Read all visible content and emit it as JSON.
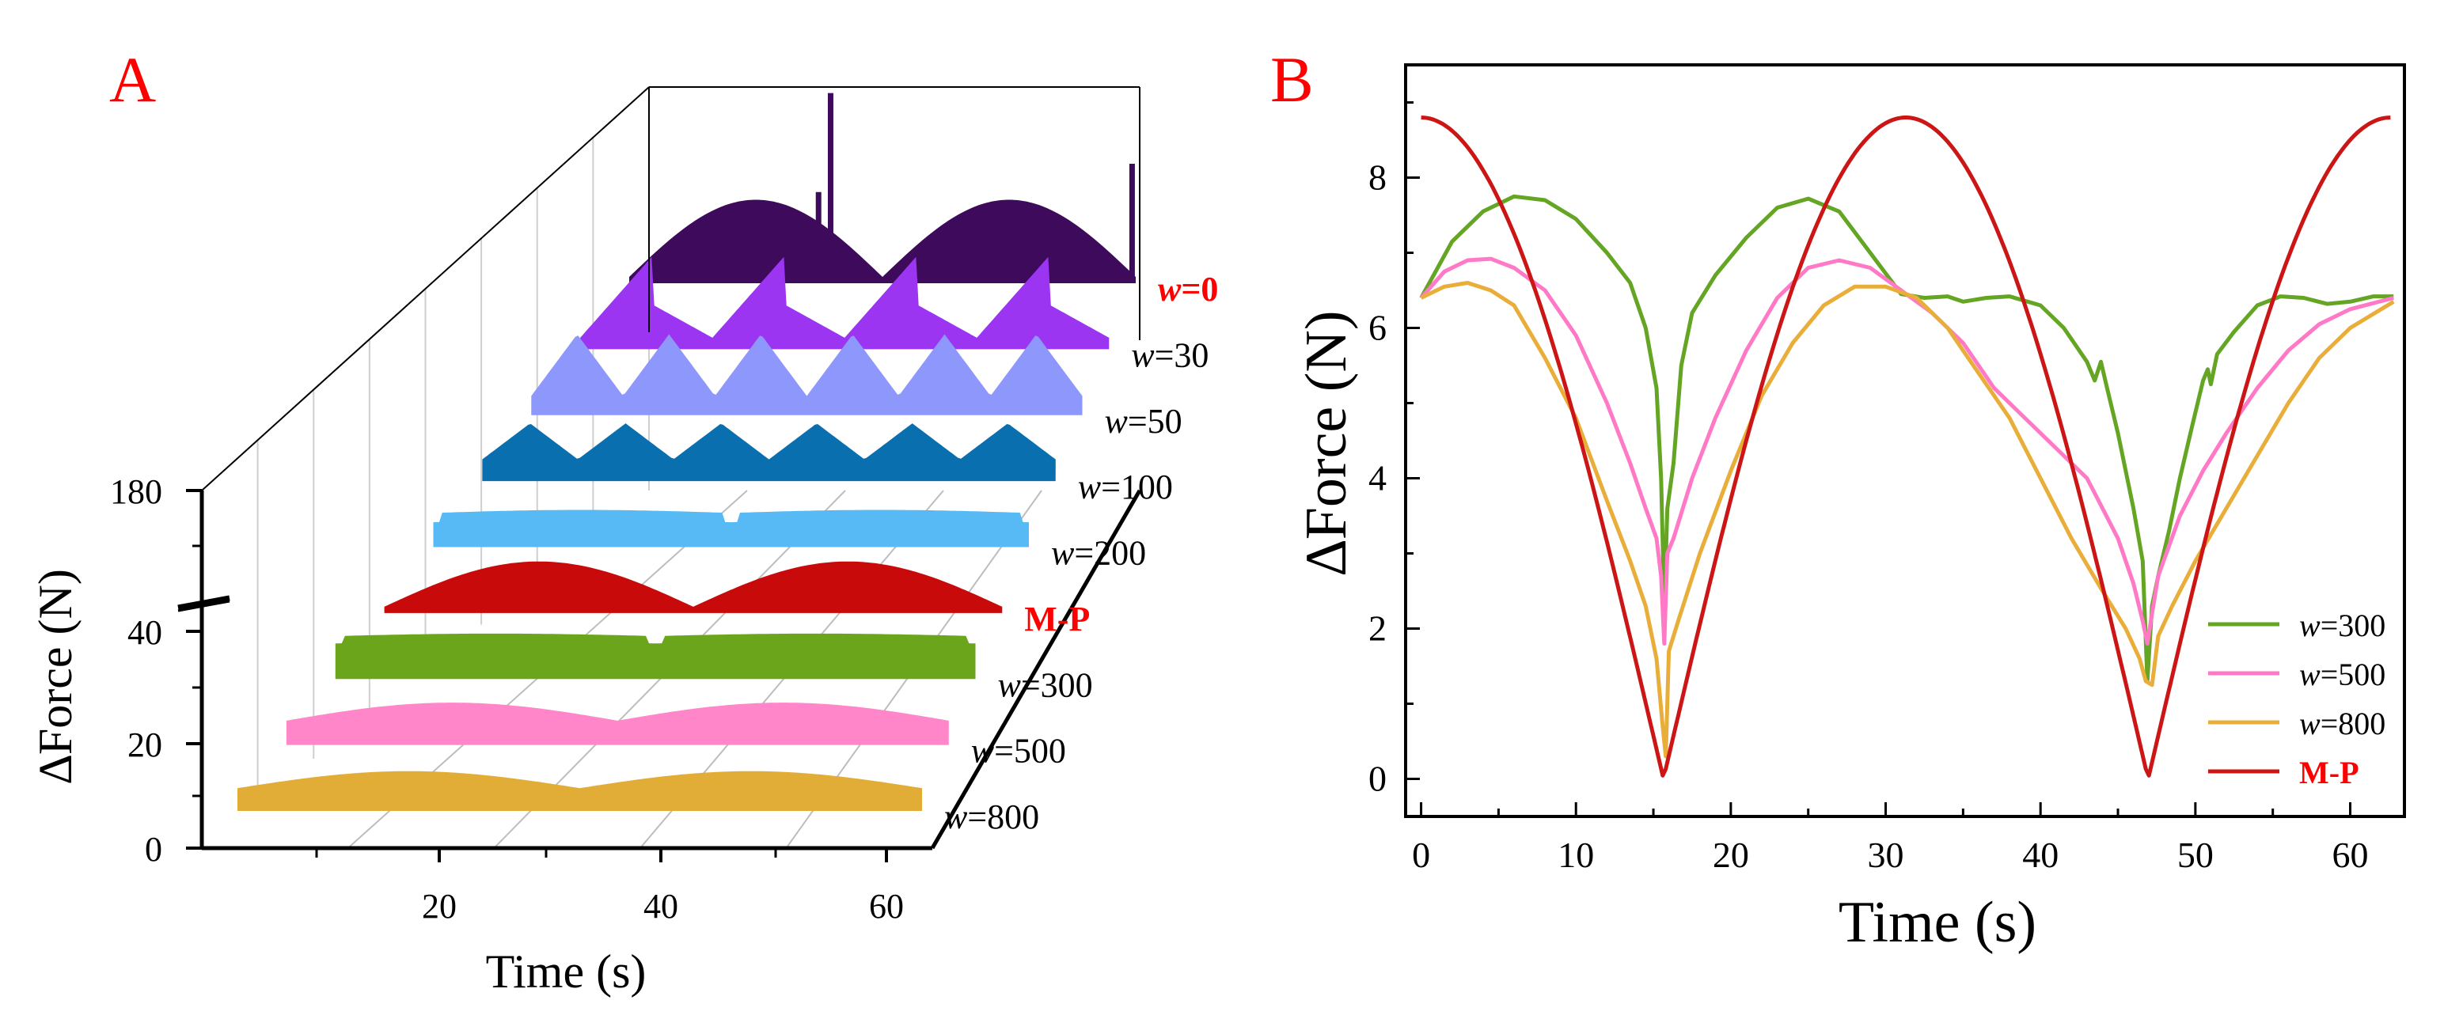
{
  "panels": {
    "a": {
      "letter": "A",
      "letter_color": "#ff0000"
    },
    "b": {
      "letter": "B",
      "letter_color": "#ff0000"
    }
  },
  "chart_data": [
    {
      "id": "panel-a",
      "type": "area",
      "subtype": "3d-waterfall",
      "xlabel": "Time (s)",
      "ylabel": "∆Force (N)",
      "xlim": [
        0,
        63
      ],
      "xticks": [
        20,
        40,
        60
      ],
      "ylim": [
        0,
        180
      ],
      "yticks": [
        {
          "label": "0",
          "value": 0
        },
        {
          "label": "20",
          "value": 20
        },
        {
          "label": "40",
          "value": 40
        },
        {
          "label": "180",
          "value": 180
        }
      ],
      "axis_break": "between 40 and 180",
      "series": [
        {
          "name": "w=800",
          "var": "w",
          "eq": "=800",
          "color": "#e2ad37",
          "label_color": "#000000",
          "bold": false,
          "kind": "arch",
          "base": 3.2,
          "amp": 3.3
        },
        {
          "name": "w=500",
          "var": "w",
          "eq": "=500",
          "color": "#ff86c9",
          "label_color": "#000000",
          "bold": false,
          "kind": "arch",
          "base": 3.5,
          "amp": 3.5
        },
        {
          "name": "w=300",
          "var": "w",
          "eq": "=300",
          "color": "#6aa51c",
          "label_color": "#000000",
          "bold": false,
          "kind": "flat",
          "base": 6.4,
          "amp": 1.2
        },
        {
          "name": "M-P",
          "var": "",
          "eq": "M-P",
          "color": "#c80a0a",
          "label_color": "#ff0000",
          "bold": true,
          "kind": "arch",
          "base": 0,
          "amp": 8.8
        },
        {
          "name": "w=200",
          "var": "w",
          "eq": "=200",
          "color": "#58baf5",
          "label_color": "#000000",
          "bold": false,
          "kind": "flat",
          "base": 4.5,
          "amp": 1.5
        },
        {
          "name": "w=100",
          "var": "w",
          "eq": "=100",
          "color": "#0a6fae",
          "label_color": "#000000",
          "bold": false,
          "kind": "tri",
          "base": 3.0,
          "amp": 7.0
        },
        {
          "name": "w=50",
          "var": "w",
          "eq": "=50",
          "color": "#8e98fc",
          "label_color": "#000000",
          "bold": false,
          "kind": "tri",
          "base": 2.5,
          "amp": 12.0
        },
        {
          "name": "w=30",
          "var": "w",
          "eq": "=30",
          "color": "#9b35f2",
          "label_color": "#000000",
          "bold": false,
          "kind": "saw",
          "base": 1.0,
          "amp": 16.0
        },
        {
          "name": "w=0",
          "var": "w",
          "eq": "=0",
          "color": "#3e0b5c",
          "label_color": "#ff0000",
          "bold": true,
          "kind": "arch",
          "base": 0,
          "amp": 15.0,
          "spikes": [
            {
              "x": 23.5,
              "h": 30
            },
            {
              "x": 25.0,
              "h": 65
            },
            {
              "x": 62.5,
              "h": 40
            }
          ]
        }
      ]
    },
    {
      "id": "panel-b",
      "type": "line",
      "xlabel": "Time (s)",
      "ylabel": "∆Force (N)",
      "xlim": [
        -1,
        63.5
      ],
      "ylim": [
        -0.5,
        9.5
      ],
      "xticks": [
        0,
        10,
        20,
        30,
        40,
        50,
        60
      ],
      "yticks": [
        0,
        2,
        4,
        6,
        8
      ],
      "legend": "bottom-right",
      "series": [
        {
          "name": "w=300",
          "var": "w",
          "eq": "=300",
          "color": "#64a524",
          "label_color": "#000000",
          "bold": false,
          "points": [
            [
              0,
              6.4
            ],
            [
              2,
              7.15
            ],
            [
              4,
              7.55
            ],
            [
              6,
              7.75
            ],
            [
              8,
              7.7
            ],
            [
              10,
              7.45
            ],
            [
              12,
              7.0
            ],
            [
              13.5,
              6.6
            ],
            [
              14.5,
              6.0
            ],
            [
              15.2,
              5.2
            ],
            [
              15.5,
              4.0
            ],
            [
              15.7,
              2.3
            ],
            [
              15.9,
              3.6
            ],
            [
              16.3,
              4.2
            ],
            [
              16.8,
              5.5
            ],
            [
              17.5,
              6.2
            ],
            [
              19,
              6.7
            ],
            [
              21,
              7.2
            ],
            [
              23,
              7.6
            ],
            [
              25,
              7.72
            ],
            [
              27,
              7.55
            ],
            [
              29,
              7.0
            ],
            [
              31,
              6.45
            ],
            [
              32.5,
              6.4
            ],
            [
              34,
              6.42
            ],
            [
              35,
              6.35
            ],
            [
              36.5,
              6.4
            ],
            [
              38,
              6.42
            ],
            [
              40,
              6.3
            ],
            [
              41.5,
              6.0
            ],
            [
              43,
              5.55
            ],
            [
              43.5,
              5.3
            ],
            [
              43.9,
              5.55
            ],
            [
              44.3,
              5.2
            ],
            [
              45,
              4.6
            ],
            [
              46,
              3.6
            ],
            [
              46.6,
              2.9
            ],
            [
              46.9,
              1.3
            ],
            [
              47.2,
              2.3
            ],
            [
              47.6,
              2.7
            ],
            [
              48.3,
              3.3
            ],
            [
              49,
              4.0
            ],
            [
              49.8,
              4.7
            ],
            [
              50.5,
              5.3
            ],
            [
              50.8,
              5.45
            ],
            [
              51,
              5.25
            ],
            [
              51.4,
              5.65
            ],
            [
              52.5,
              5.95
            ],
            [
              54,
              6.3
            ],
            [
              55.5,
              6.42
            ],
            [
              57,
              6.4
            ],
            [
              58.5,
              6.32
            ],
            [
              60,
              6.35
            ],
            [
              61.5,
              6.42
            ],
            [
              62.8,
              6.42
            ]
          ]
        },
        {
          "name": "w=500",
          "var": "w",
          "eq": "=500",
          "color": "#ff79c6",
          "label_color": "#000000",
          "bold": false,
          "points": [
            [
              0,
              6.4
            ],
            [
              1.5,
              6.75
            ],
            [
              3,
              6.9
            ],
            [
              4.5,
              6.92
            ],
            [
              6,
              6.8
            ],
            [
              8,
              6.5
            ],
            [
              10,
              5.9
            ],
            [
              12,
              5.0
            ],
            [
              13.5,
              4.2
            ],
            [
              14.5,
              3.6
            ],
            [
              15.2,
              3.2
            ],
            [
              15.5,
              2.7
            ],
            [
              15.7,
              1.8
            ],
            [
              15.9,
              3.0
            ],
            [
              16.3,
              3.2
            ],
            [
              17.5,
              4.0
            ],
            [
              19,
              4.8
            ],
            [
              21,
              5.7
            ],
            [
              23,
              6.4
            ],
            [
              25,
              6.8
            ],
            [
              27,
              6.9
            ],
            [
              29,
              6.8
            ],
            [
              31,
              6.5
            ],
            [
              33,
              6.2
            ],
            [
              35,
              5.8
            ],
            [
              37,
              5.2
            ],
            [
              39,
              4.8
            ],
            [
              41,
              4.4
            ],
            [
              43,
              4.0
            ],
            [
              44,
              3.6
            ],
            [
              45,
              3.2
            ],
            [
              46,
              2.6
            ],
            [
              46.6,
              2.1
            ],
            [
              46.9,
              1.8
            ],
            [
              47.2,
              2.2
            ],
            [
              47.6,
              2.7
            ],
            [
              48.3,
              3.1
            ],
            [
              49,
              3.5
            ],
            [
              50.5,
              4.1
            ],
            [
              52,
              4.6
            ],
            [
              54,
              5.2
            ],
            [
              56,
              5.7
            ],
            [
              58,
              6.05
            ],
            [
              60,
              6.25
            ],
            [
              62.8,
              6.4
            ]
          ]
        },
        {
          "name": "w=800",
          "var": "w",
          "eq": "=800",
          "color": "#e9ae3a",
          "label_color": "#000000",
          "bold": false,
          "points": [
            [
              0,
              6.4
            ],
            [
              1.5,
              6.55
            ],
            [
              3,
              6.6
            ],
            [
              4.5,
              6.5
            ],
            [
              6,
              6.3
            ],
            [
              8,
              5.6
            ],
            [
              10,
              4.8
            ],
            [
              12,
              3.7
            ],
            [
              13.5,
              2.9
            ],
            [
              14.5,
              2.3
            ],
            [
              15.2,
              1.6
            ],
            [
              15.6,
              0.7
            ],
            [
              15.8,
              0.3
            ],
            [
              16,
              1.7
            ],
            [
              16.6,
              2.1
            ],
            [
              18,
              3.0
            ],
            [
              20,
              4.1
            ],
            [
              22,
              5.1
            ],
            [
              24,
              5.8
            ],
            [
              26,
              6.3
            ],
            [
              28,
              6.55
            ],
            [
              30,
              6.55
            ],
            [
              32,
              6.4
            ],
            [
              34,
              6.0
            ],
            [
              36,
              5.4
            ],
            [
              38,
              4.8
            ],
            [
              40,
              4.0
            ],
            [
              42,
              3.2
            ],
            [
              44,
              2.5
            ],
            [
              45.5,
              2.0
            ],
            [
              46.4,
              1.6
            ],
            [
              46.8,
              1.3
            ],
            [
              47.2,
              1.25
            ],
            [
              47.6,
              1.9
            ],
            [
              48.5,
              2.3
            ],
            [
              50,
              2.9
            ],
            [
              52,
              3.6
            ],
            [
              54,
              4.3
            ],
            [
              56,
              5.0
            ],
            [
              58,
              5.6
            ],
            [
              60,
              6.0
            ],
            [
              62.8,
              6.35
            ]
          ]
        },
        {
          "name": "M-P",
          "var": "",
          "eq": "M-P",
          "color": "#cc1616",
          "label_color": "#ff0000",
          "bold": true,
          "formula": "8.8*|cos(pi*t/31.3)|",
          "period": 31.3,
          "amp": 8.8
        }
      ]
    }
  ]
}
